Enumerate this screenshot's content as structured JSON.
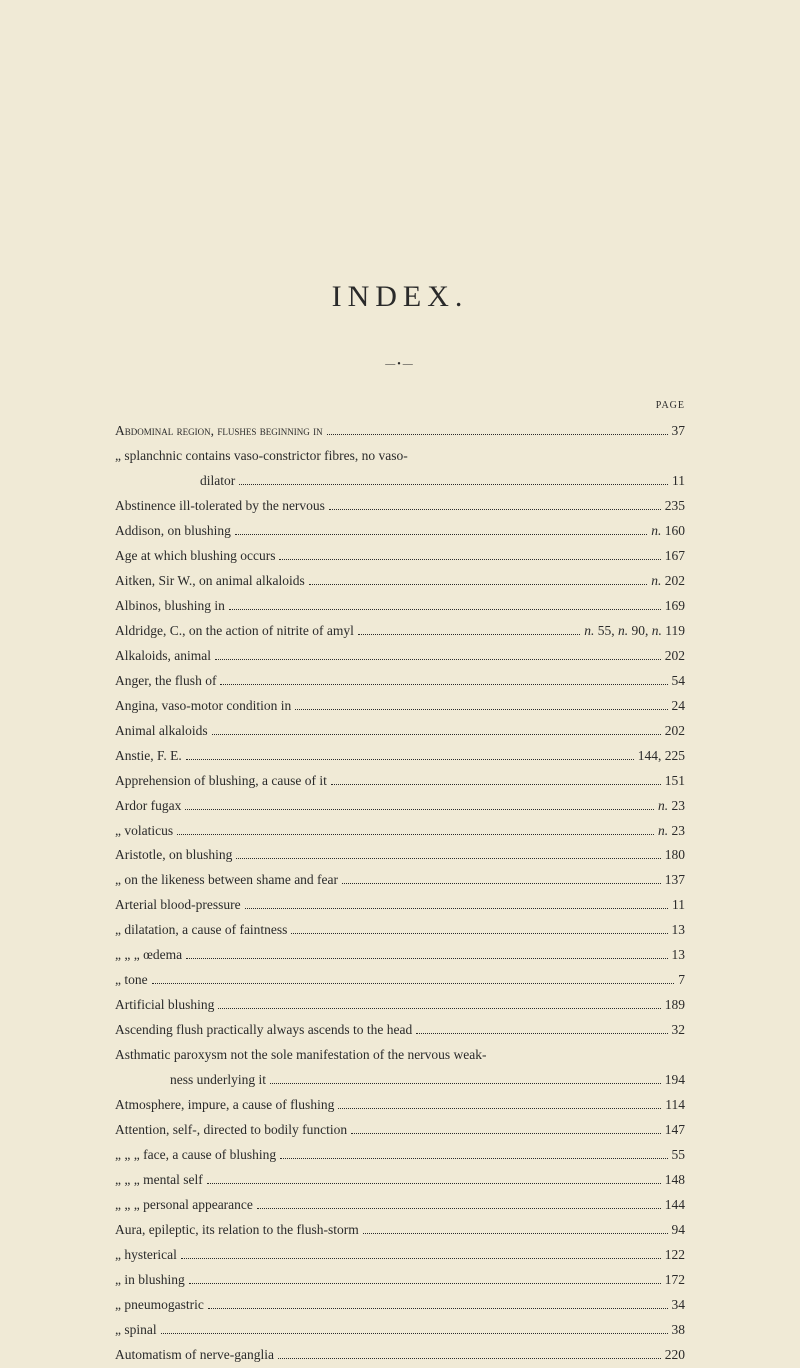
{
  "title": "INDEX.",
  "divider": "—•—",
  "pageHeader": "PAGE",
  "background_color": "#f0ead6",
  "text_color": "#2a2a2a",
  "font_family": "Georgia, Times New Roman, serif",
  "title_fontsize": 30,
  "body_fontsize": 13.5,
  "line_height": 1.85,
  "entries": [
    {
      "label": "Abdominal region, flushes beginning in",
      "page": "37",
      "indent": 0,
      "smallcaps": true
    },
    {
      "label": "„        splanchnic contains vaso-constrictor fibres, no vaso-",
      "page": "",
      "indent": 0,
      "continuation": true
    },
    {
      "label": "dilator",
      "page": "11",
      "indent": 3
    },
    {
      "label": "Abstinence ill-tolerated by the nervous",
      "page": "235",
      "indent": 0
    },
    {
      "label": "Addison, on blushing",
      "page": "n. 160",
      "indent": 0,
      "italic_n": true
    },
    {
      "label": "Age at which blushing occurs",
      "page": "167",
      "indent": 0
    },
    {
      "label": "Aitken, Sir W., on animal alkaloids",
      "page": "n. 202",
      "indent": 0,
      "italic_n": true
    },
    {
      "label": "Albinos, blushing in",
      "page": "169",
      "indent": 0
    },
    {
      "label": "Aldridge, C., on the action of nitrite of amyl",
      "page": "n. 55, n. 90, n. 119",
      "indent": 0,
      "italic_n": true
    },
    {
      "label": "Alkaloids, animal",
      "page": "202",
      "indent": 0
    },
    {
      "label": "Anger, the flush of",
      "page": "54",
      "indent": 0
    },
    {
      "label": "Angina, vaso-motor condition in",
      "page": "24",
      "indent": 0
    },
    {
      "label": "Animal alkaloids",
      "page": "202",
      "indent": 0
    },
    {
      "label": "Anstie, F. E.",
      "page": "144, 225",
      "indent": 0
    },
    {
      "label": "Apprehension of blushing, a cause of it",
      "page": "151",
      "indent": 0
    },
    {
      "label": "Ardor fugax",
      "page": "n. 23",
      "indent": 0,
      "italic_n": true
    },
    {
      "label": "„     volaticus",
      "page": "n. 23",
      "indent": 0,
      "italic_n": true
    },
    {
      "label": "Aristotle, on blushing",
      "page": "180",
      "indent": 0
    },
    {
      "label": "„       on the likeness between shame and fear",
      "page": "137",
      "indent": 0
    },
    {
      "label": "Arterial blood-pressure",
      "page": "11",
      "indent": 0
    },
    {
      "label": "„     dilatation, a cause of faintness",
      "page": "13",
      "indent": 0
    },
    {
      "label": "„          „           „       œdema",
      "page": "13",
      "indent": 0
    },
    {
      "label": "„     tone",
      "page": "7",
      "indent": 0
    },
    {
      "label": "Artificial blushing",
      "page": "189",
      "indent": 0
    },
    {
      "label": "Ascending flush practically always ascends to the head",
      "page": "32",
      "indent": 0
    },
    {
      "label": "Asthmatic paroxysm not the sole manifestation of the nervous weak-",
      "page": "",
      "indent": 0,
      "continuation": true
    },
    {
      "label": "ness underlying it",
      "page": "194",
      "indent": 2
    },
    {
      "label": "Atmosphere, impure, a cause of flushing",
      "page": "114",
      "indent": 0
    },
    {
      "label": "Attention, self-, directed to bodily function",
      "page": "147",
      "indent": 0
    },
    {
      "label": "„       „        „        face, a cause of blushing",
      "page": "55",
      "indent": 0
    },
    {
      "label": "„       „        „        mental self",
      "page": "148",
      "indent": 0
    },
    {
      "label": "„       „        „        personal appearance",
      "page": "144",
      "indent": 0
    },
    {
      "label": "Aura, epileptic, its relation to the flush-storm",
      "page": "94",
      "indent": 0
    },
    {
      "label": "„    hysterical",
      "page": "122",
      "indent": 0
    },
    {
      "label": "„    in blushing",
      "page": "172",
      "indent": 0
    },
    {
      "label": "„    pneumogastric",
      "page": "34",
      "indent": 0
    },
    {
      "label": "„    spinal",
      "page": "38",
      "indent": 0
    },
    {
      "label": "Automatism of nerve-ganglia",
      "page": "220",
      "indent": 0
    }
  ]
}
